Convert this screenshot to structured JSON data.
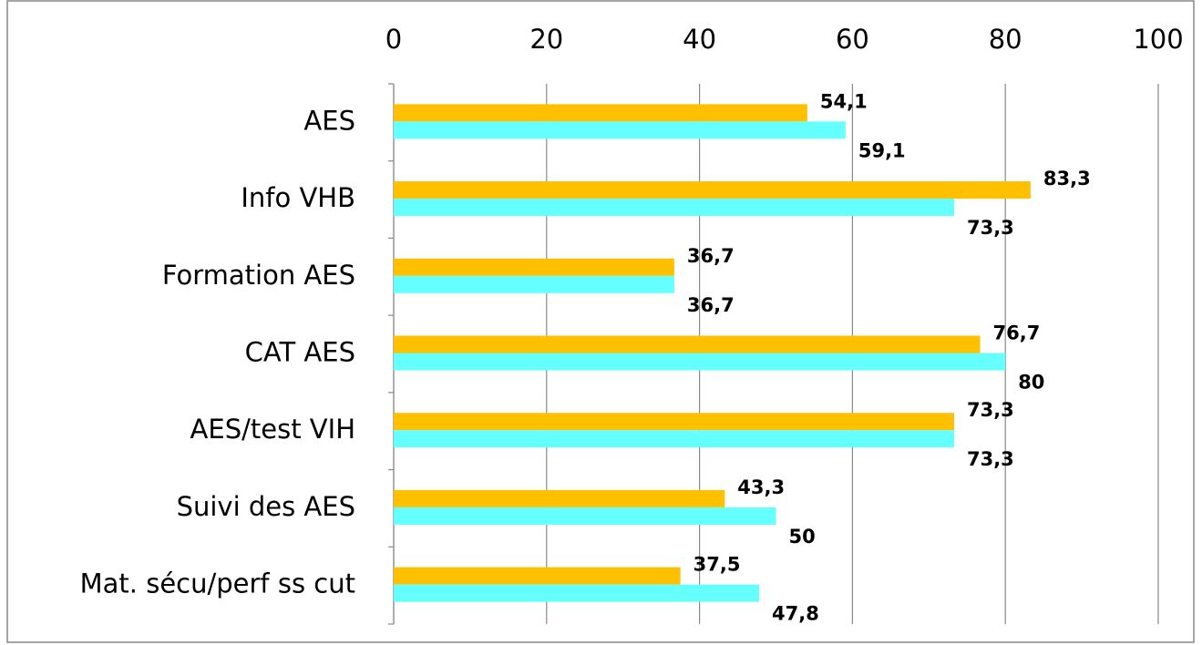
{
  "chart_data": {
    "type": "hbar",
    "categories": [
      "AES",
      "Info VHB",
      "Formation AES",
      "CAT AES",
      "AES/test VIH",
      "Suivi des AES",
      "Mat. sécu/perf ss cut"
    ],
    "series": [
      {
        "color": "#FFC000",
        "values": [
          54.1,
          83.3,
          36.7,
          76.7,
          73.3,
          43.3,
          37.5
        ],
        "value_labels": [
          "54,1",
          "83,3",
          "36,7",
          "76,7",
          "73,3",
          "43,3",
          "37,5"
        ]
      },
      {
        "color": "#66FFFF",
        "values": [
          59.1,
          73.3,
          36.7,
          80,
          73.3,
          50,
          47.8
        ],
        "value_labels": [
          "59,1",
          "73,3",
          "36,7",
          "80",
          "73,3",
          "50",
          "47,8"
        ]
      }
    ],
    "xlim": [
      0,
      100
    ],
    "xticks": [
      0,
      20,
      40,
      60,
      80,
      100
    ],
    "grid": true
  }
}
